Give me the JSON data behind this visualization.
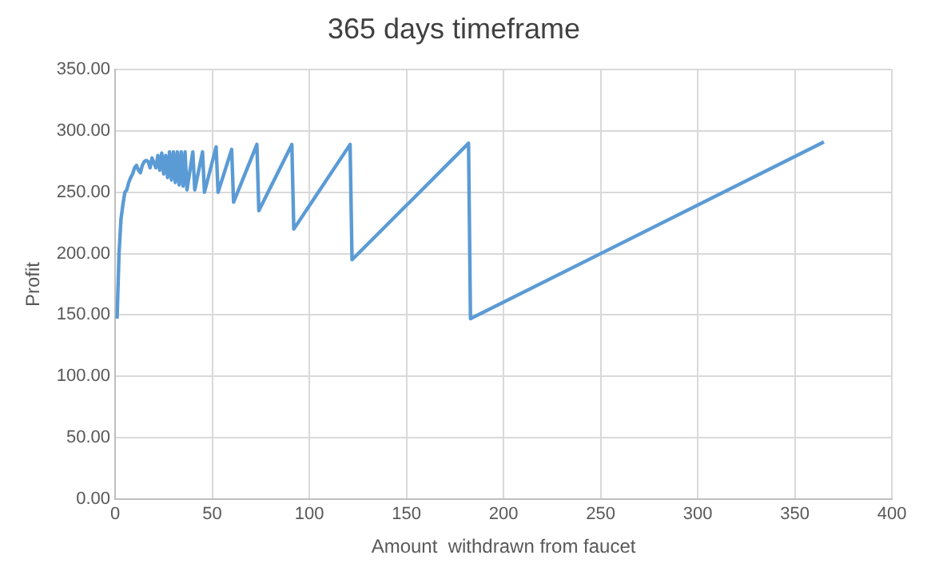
{
  "chart_data": {
    "type": "line",
    "title": "365 days timeframe",
    "xlabel": "Amount  withdrawn from faucet",
    "ylabel": "Profit",
    "x": [
      1,
      2,
      3,
      4,
      5,
      6,
      7,
      8,
      9,
      10,
      11,
      12,
      13,
      14,
      15,
      16,
      17,
      18,
      19,
      20,
      21,
      22,
      23,
      24,
      25,
      26,
      27,
      28,
      29,
      30,
      31,
      32,
      33,
      34,
      35,
      36,
      37,
      40,
      41,
      45,
      46,
      52,
      53,
      60,
      61,
      73,
      74,
      91,
      92,
      121,
      122,
      182,
      183,
      365
    ],
    "series": [
      {
        "color": "#5b9bd5",
        "values": [
          147,
          200,
          228,
          240,
          250,
          252,
          258,
          262,
          265,
          270,
          272,
          268,
          266,
          272,
          275,
          276,
          275,
          270,
          278,
          274,
          270,
          280,
          268,
          282,
          265,
          280,
          262,
          283,
          260,
          283,
          258,
          283,
          256,
          283,
          255,
          283,
          252,
          283,
          252,
          283,
          250,
          287,
          250,
          285,
          242,
          289,
          235,
          289,
          220,
          289,
          195,
          290,
          147,
          291
        ]
      }
    ],
    "xlim": [
      0,
      400
    ],
    "xticks": [
      0,
      50,
      100,
      150,
      200,
      250,
      300,
      350,
      400
    ],
    "ylim": [
      0,
      350
    ],
    "yticks": [
      {
        "value": 0,
        "label": "0.00"
      },
      {
        "value": 50,
        "label": "50.00"
      },
      {
        "value": 100,
        "label": "100.00"
      },
      {
        "value": 150,
        "label": "150.00"
      },
      {
        "value": 200,
        "label": "200.00"
      },
      {
        "value": 250,
        "label": "250.00"
      },
      {
        "value": 300,
        "label": "300.00"
      },
      {
        "value": 350,
        "label": "350.00"
      }
    ],
    "grid": true,
    "legend": false,
    "marker": "none",
    "line_style": "solid"
  }
}
